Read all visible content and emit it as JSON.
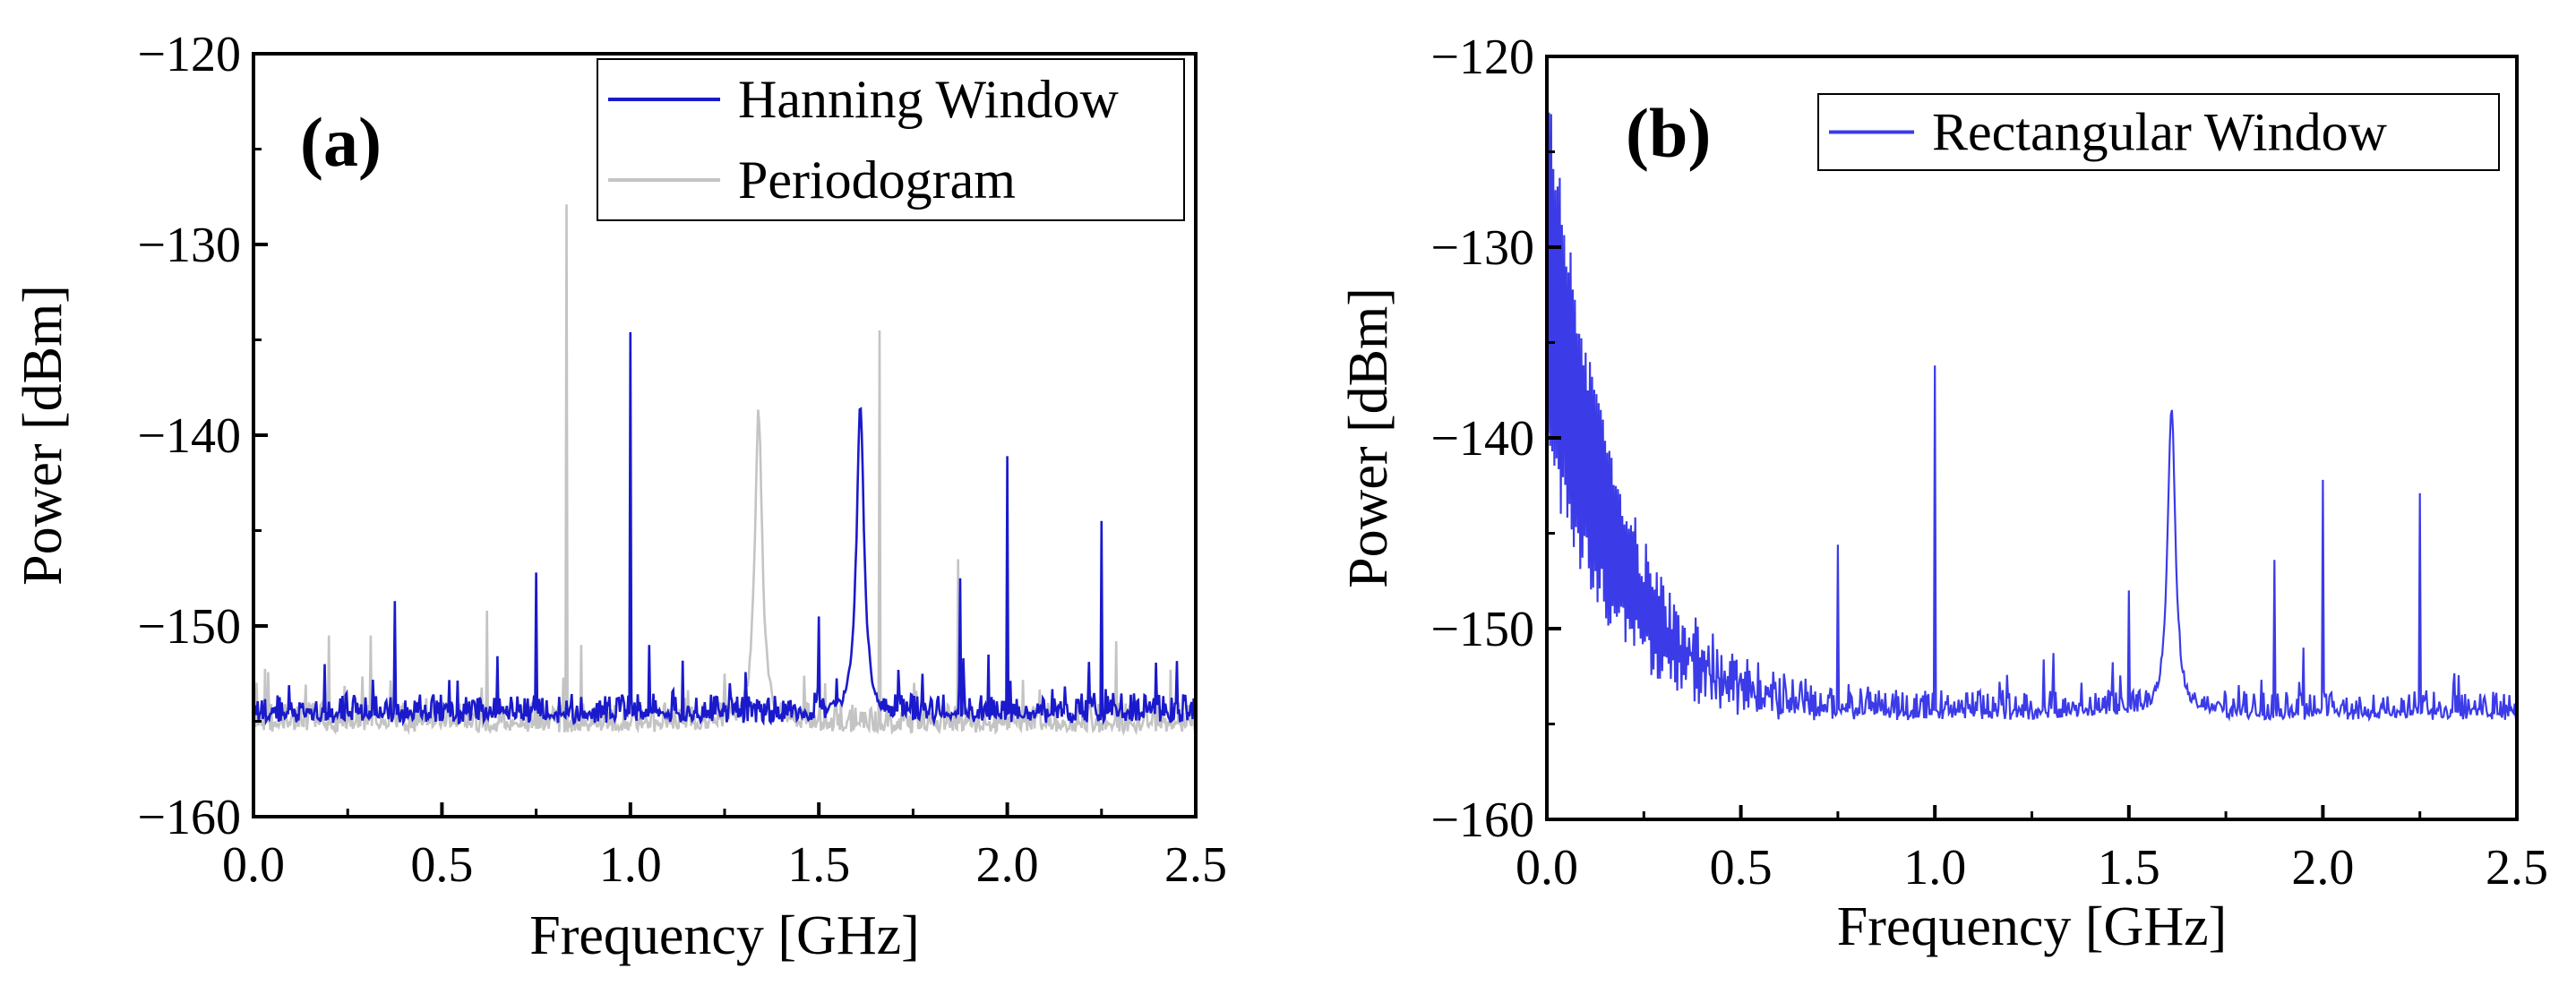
{
  "chart_data": [
    {
      "panel_label": "(a)",
      "type": "line",
      "xlabel": "Frequency [GHz]",
      "ylabel": "Power [dBm]",
      "xlim": [
        0.0,
        2.5
      ],
      "ylim": [
        -160,
        -120
      ],
      "x_ticks": [
        0.0,
        0.5,
        1.0,
        1.5,
        2.0,
        2.5
      ],
      "x_tick_labels": [
        "0.0",
        "0.5",
        "1.0",
        "1.5",
        "2.0",
        "2.5"
      ],
      "y_ticks": [
        -160,
        -150,
        -140,
        -130,
        -120
      ],
      "y_tick_labels": [
        "−160",
        "−150",
        "−140",
        "−130",
        "−120"
      ],
      "legend_position": "top-right",
      "series": [
        {
          "name": "Hanning Window",
          "color": "#1a1acc",
          "noise_floor": -154.8,
          "spikes": [
            {
              "x": 0.19,
              "y": -152.0
            },
            {
              "x": 0.375,
              "y": -148.7
            },
            {
              "x": 0.75,
              "y": -147.2
            },
            {
              "x": 1.0,
              "y": -134.6
            },
            {
              "x": 1.05,
              "y": -151.0
            },
            {
              "x": 1.5,
              "y": -149.5
            },
            {
              "x": 1.875,
              "y": -147.5
            },
            {
              "x": 1.95,
              "y": -151.5
            },
            {
              "x": 2.0,
              "y": -141.1
            },
            {
              "x": 2.25,
              "y": -144.5
            }
          ],
          "peaks": [
            {
              "x": 1.61,
              "y": -138.4,
              "width": 0.012
            }
          ]
        },
        {
          "name": "Periodogram",
          "color": "#c4c4c4",
          "noise_floor": -155.3,
          "spikes": [
            {
              "x": 0.2,
              "y": -150.5
            },
            {
              "x": 0.31,
              "y": -150.5
            },
            {
              "x": 0.62,
              "y": -149.2
            },
            {
              "x": 0.83,
              "y": -127.9
            },
            {
              "x": 0.87,
              "y": -151.0
            },
            {
              "x": 1.25,
              "y": -152.5
            },
            {
              "x": 1.66,
              "y": -134.5
            },
            {
              "x": 1.87,
              "y": -146.5
            },
            {
              "x": 2.29,
              "y": -150.8
            }
          ],
          "peaks": [
            {
              "x": 1.34,
              "y": -138.8,
              "width": 0.012
            }
          ]
        }
      ]
    },
    {
      "panel_label": "(b)",
      "type": "line",
      "xlabel": "Frequency [GHz]",
      "ylabel": "Power [dBm]",
      "xlim": [
        0.0,
        2.5
      ],
      "ylim": [
        -160,
        -120
      ],
      "x_ticks": [
        0.0,
        0.5,
        1.0,
        1.5,
        2.0,
        2.5
      ],
      "x_tick_labels": [
        "0.0",
        "0.5",
        "1.0",
        "1.5",
        "2.0",
        "2.5"
      ],
      "y_ticks": [
        -160,
        -150,
        -140,
        -130,
        -120
      ],
      "y_tick_labels": [
        "−160",
        "−150",
        "−140",
        "−130",
        "−120"
      ],
      "legend_position": "top-right",
      "series": [
        {
          "name": "Rectangular Window",
          "color": "#3b3be8",
          "noise_floor": -154.5,
          "low_freq_rise_start_db": -122.0,
          "spikes": [
            {
              "x": 0.75,
              "y": -145.6
            },
            {
              "x": 1.0,
              "y": -136.2
            },
            {
              "x": 1.5,
              "y": -148.0
            },
            {
              "x": 1.875,
              "y": -146.4
            },
            {
              "x": 1.95,
              "y": -151.0
            },
            {
              "x": 2.0,
              "y": -142.2
            },
            {
              "x": 2.25,
              "y": -142.9
            }
          ],
          "peaks": [
            {
              "x": 1.61,
              "y": -138.4,
              "width": 0.012
            }
          ]
        }
      ]
    }
  ]
}
